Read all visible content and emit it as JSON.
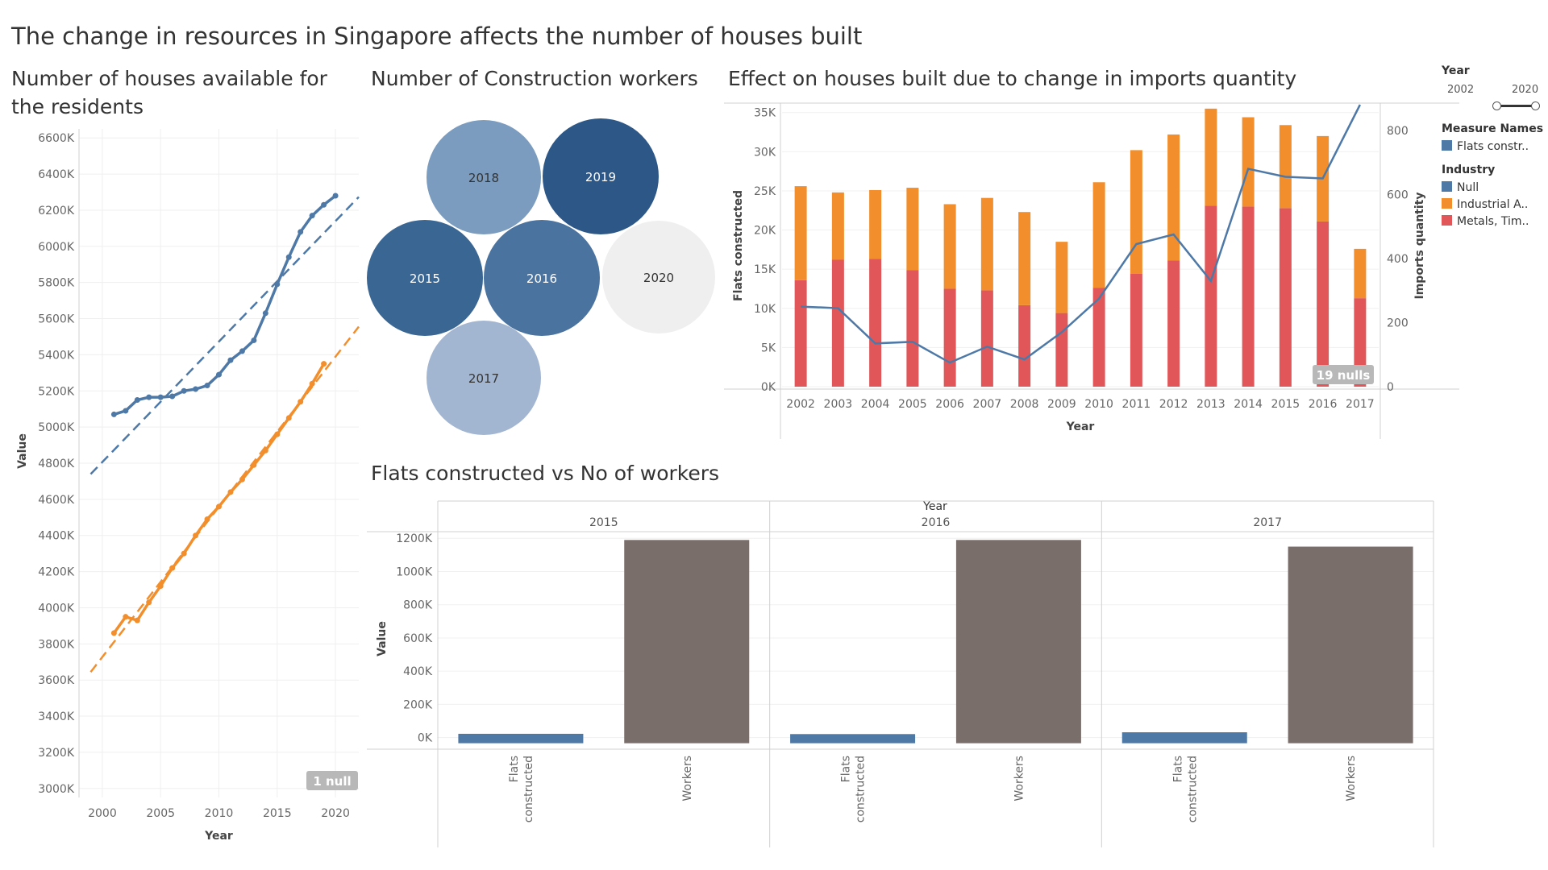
{
  "dashboard": {
    "title": "The change in resources in Singapore affects the number of houses built"
  },
  "panels": {
    "houses": "Number of houses available for the residents",
    "workers": "Number of Construction workers",
    "imports": "Effect on houses built due to change in imports quantity",
    "flats_vs_workers": "Flats constructed vs No of workers"
  },
  "filters": {
    "year_label": "Year",
    "year_min": "2002",
    "year_max": "2020"
  },
  "legend": {
    "measure_title": "Measure Names",
    "measure_items": [
      {
        "label": "Flats constr..",
        "color": "#4e79a7"
      }
    ],
    "industry_title": "Industry",
    "industry_items": [
      {
        "label": "Null",
        "color": "#4e79a7"
      },
      {
        "label": "Industrial A..",
        "color": "#f28e2b"
      },
      {
        "label": "Metals, Tim..",
        "color": "#e15759"
      }
    ]
  },
  "chart_data": [
    {
      "type": "line",
      "title": "Number of houses available for the residents",
      "xlabel": "Year",
      "ylabel": "Value",
      "xlim": [
        1998,
        2022
      ],
      "ylim": [
        2950000,
        6650000
      ],
      "x_ticks": [
        2000,
        2005,
        2010,
        2015,
        2020
      ],
      "y_ticks": [
        3000000,
        3200000,
        3400000,
        3600000,
        3800000,
        4000000,
        4200000,
        4400000,
        4600000,
        4800000,
        5000000,
        5200000,
        5400000,
        5600000,
        5800000,
        6000000,
        6200000,
        6400000,
        6600000
      ],
      "y_tick_labels": [
        "3000K",
        "3200K",
        "3400K",
        "3600K",
        "3800K",
        "4000K",
        "4200K",
        "4400K",
        "4600K",
        "4800K",
        "5000K",
        "5200K",
        "5400K",
        "5600K",
        "5800K",
        "6000K",
        "6200K",
        "6400K",
        "6600K"
      ],
      "trend_lines": true,
      "grid": true,
      "null_badge": "1 null",
      "series": [
        {
          "color": "#4e79a7",
          "x": [
            2001,
            2002,
            2003,
            2004,
            2005,
            2006,
            2007,
            2008,
            2009,
            2010,
            2011,
            2012,
            2013,
            2014,
            2015,
            2016,
            2017,
            2018,
            2019,
            2020
          ],
          "values": [
            5070000,
            5090000,
            5150000,
            5165000,
            5165000,
            5170000,
            5200000,
            5210000,
            5230000,
            5290000,
            5370000,
            5420000,
            5480000,
            5630000,
            5790000,
            5940000,
            6080000,
            6170000,
            6230000,
            6280000
          ]
        },
        {
          "color": "#f28e2b",
          "x": [
            2001,
            2002,
            2003,
            2004,
            2005,
            2006,
            2007,
            2008,
            2009,
            2010,
            2011,
            2012,
            2013,
            2014,
            2015,
            2016,
            2017,
            2018,
            2019
          ],
          "values": [
            3860000,
            3950000,
            3930000,
            4030000,
            4120000,
            4220000,
            4300000,
            4400000,
            4490000,
            4560000,
            4640000,
            4710000,
            4790000,
            4870000,
            4960000,
            5050000,
            5140000,
            5240000,
            5350000
          ]
        }
      ]
    },
    {
      "type": "bubble",
      "title": "Number of Construction workers",
      "labels": [
        "2018",
        "2019",
        "2015",
        "2016",
        "2020",
        "2017"
      ],
      "colors": [
        "#7b9cbf",
        "#2c5787",
        "#3a6694",
        "#4a739f",
        "#efefef",
        "#a3b6d1"
      ],
      "label_colors": [
        "#333333",
        "#ffffff",
        "#ffffff",
        "#ffffff",
        "#333333",
        "#333333"
      ]
    },
    {
      "type": "bar",
      "stacked": true,
      "title": "Effect on houses built due to change in imports quantity",
      "xlabel": "Year",
      "ylabel": "Flats constructed",
      "y2label": "Imports quantity",
      "categories": [
        "2002",
        "2003",
        "2004",
        "2005",
        "2006",
        "2007",
        "2008",
        "2009",
        "2010",
        "2011",
        "2012",
        "2013",
        "2014",
        "2015",
        "2016",
        "2017"
      ],
      "ylim": [
        0,
        36000
      ],
      "y_ticks": [
        0,
        5000,
        10000,
        15000,
        20000,
        25000,
        30000,
        35000
      ],
      "y_tick_labels": [
        "0K",
        "5K",
        "10K",
        "15K",
        "20K",
        "25K",
        "30K",
        "35K"
      ],
      "y2lim": [
        0,
        880
      ],
      "y2_ticks": [
        0,
        200,
        400,
        600,
        800
      ],
      "series": [
        {
          "name": "Metals, Tim..",
          "color": "#e15759",
          "values": [
            13600,
            16200,
            16300,
            14900,
            12500,
            12300,
            10400,
            9400,
            12600,
            14400,
            16100,
            23100,
            23000,
            22800,
            21100,
            11300
          ]
        },
        {
          "name": "Industrial A..",
          "color": "#f28e2b",
          "values": [
            12000,
            8600,
            8800,
            10500,
            10800,
            11800,
            11900,
            9100,
            13500,
            15800,
            16100,
            12400,
            11400,
            10600,
            10900,
            6300
          ]
        }
      ],
      "line_series": {
        "name": "Flats constr..",
        "color": "#4e79a7",
        "axis": "secondary",
        "values": [
          250,
          245,
          135,
          140,
          75,
          125,
          85,
          170,
          275,
          445,
          475,
          330,
          680,
          655,
          650,
          880
        ]
      },
      "null_badge": "19 nulls"
    },
    {
      "type": "bar",
      "title": "Flats constructed vs No of workers",
      "facet_title": "Year",
      "facets": [
        "2015",
        "2016",
        "2017"
      ],
      "categories": [
        "Flats constructed",
        "Workers"
      ],
      "ylabel": "Value",
      "ylim": [
        -60000,
        1240000
      ],
      "y_ticks": [
        0,
        200000,
        400000,
        600000,
        800000,
        1000000,
        1200000
      ],
      "y_tick_labels": [
        "0K",
        "200K",
        "400K",
        "600K",
        "800K",
        "1000K",
        "1200K"
      ],
      "colors": [
        "#4e79a7",
        "#7a6e6b"
      ],
      "values": [
        [
          22800,
          1190000
        ],
        [
          21100,
          1190000
        ],
        [
          32000,
          1150000
        ]
      ]
    }
  ]
}
